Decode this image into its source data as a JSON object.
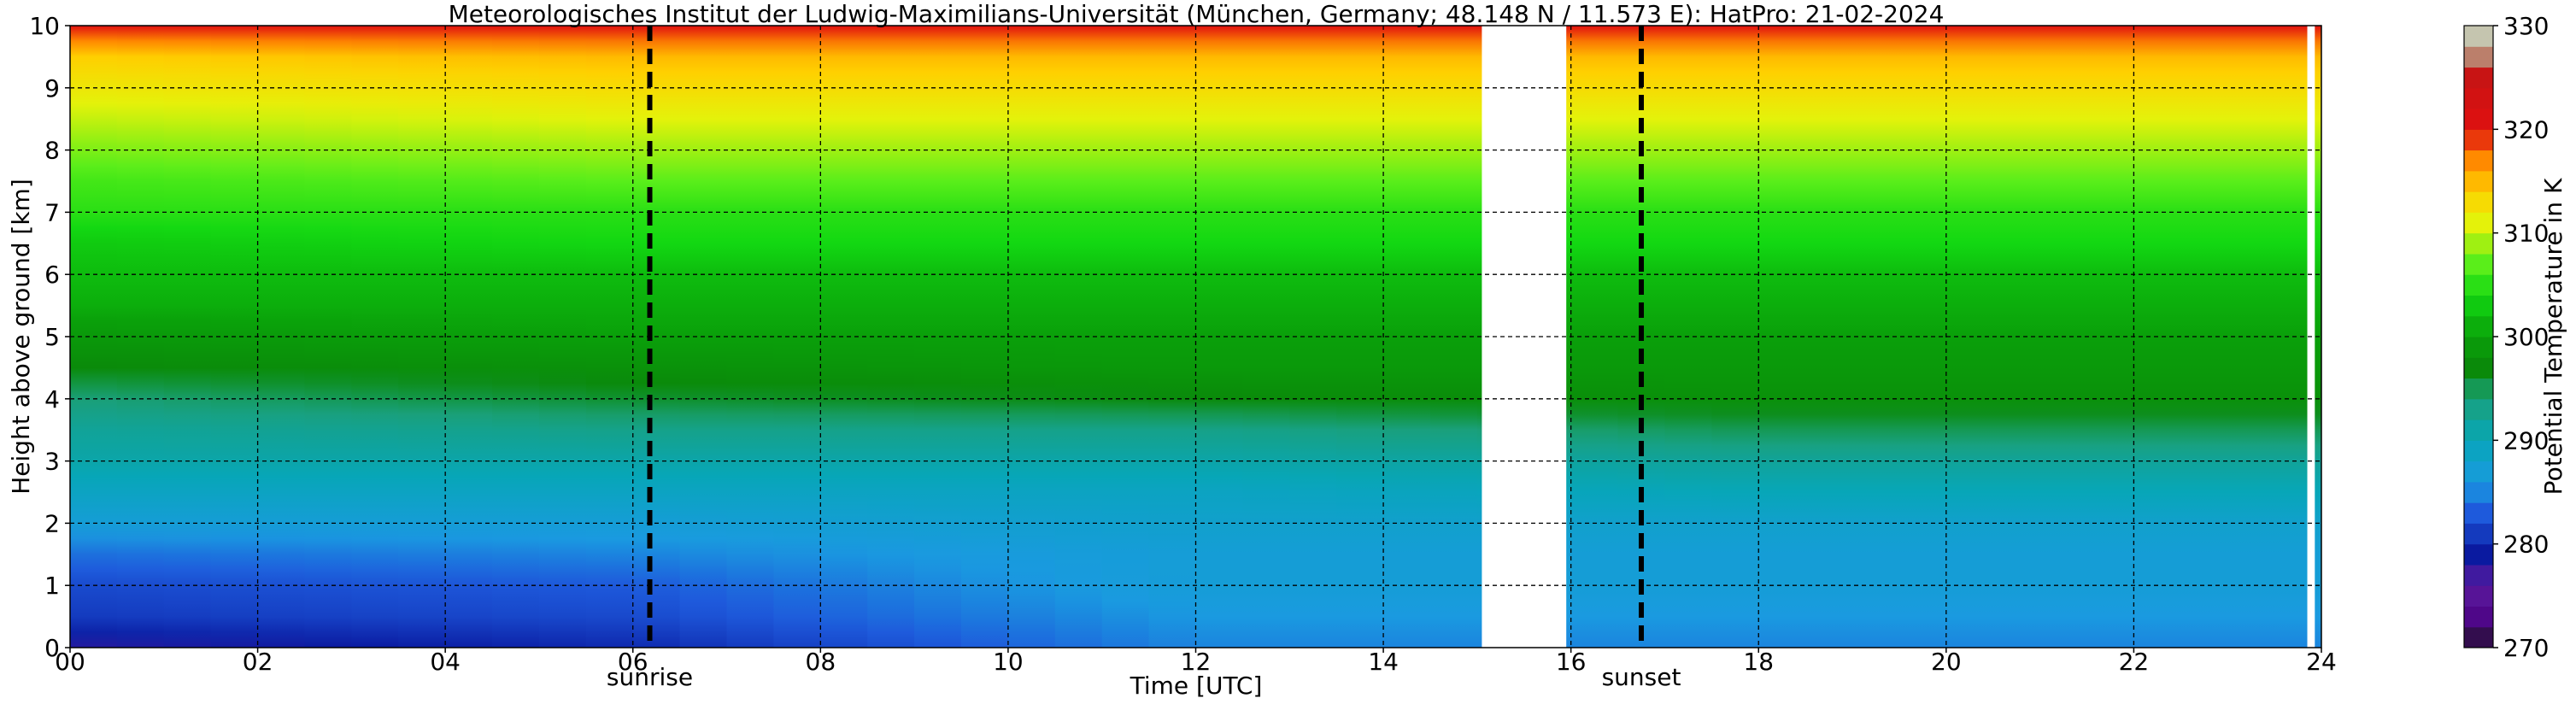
{
  "chart_data": {
    "type": "heatmap",
    "title": "Meteorologisches Institut der Ludwig-Maximilians-Universität (München, Germany; 48.148 N / 11.573 E):    HatPro: 21-02-2024",
    "xlabel": "Time [UTC]",
    "ylabel": "Height above ground [km]",
    "xlim": [
      0,
      24
    ],
    "ylim": [
      0,
      10
    ],
    "x_ticks": [
      0,
      2,
      4,
      6,
      8,
      10,
      12,
      14,
      16,
      18,
      20,
      22,
      24
    ],
    "x_tick_labels": [
      "00",
      "02",
      "04",
      "06",
      "08",
      "10",
      "12",
      "14",
      "16",
      "18",
      "20",
      "22",
      "24"
    ],
    "y_ticks": [
      0,
      1,
      2,
      3,
      4,
      5,
      6,
      7,
      8,
      9,
      10
    ],
    "y_tick_labels": [
      "0",
      "1",
      "2",
      "3",
      "4",
      "5",
      "6",
      "7",
      "8",
      "9",
      "10"
    ],
    "grid": true,
    "data_gaps": [
      [
        15.05,
        15.95
      ],
      [
        23.85,
        23.93
      ]
    ],
    "markers": [
      {
        "label": "sunrise",
        "x": 6.18
      },
      {
        "label": "sunset",
        "x": 16.75
      }
    ],
    "colorbar": {
      "label": "Potential Temperature in K",
      "min": 270,
      "max": 330,
      "ticks": [
        270,
        280,
        290,
        300,
        310,
        320,
        330
      ],
      "tick_labels": [
        "270",
        "280",
        "290",
        "300",
        "310",
        "320",
        "330"
      ]
    },
    "field_description": "Potential temperature (K) increasing with height",
    "profiles": [
      {
        "time": 0,
        "heights_km": [
          0,
          0.5,
          1.0,
          1.5,
          2.0,
          2.5,
          3.0,
          3.5,
          4.0,
          4.5,
          5.0,
          5.5,
          6.0,
          6.5,
          7.0,
          7.5,
          8.0,
          8.5,
          9.0,
          9.5,
          10.0
        ],
        "theta_K": [
          278,
          281,
          282,
          284,
          287,
          289,
          291,
          292,
          294,
          297,
          299,
          301,
          302,
          303,
          305,
          306,
          308,
          310,
          312,
          314,
          320
        ]
      },
      {
        "time": 6,
        "heights_km": [
          0,
          0.5,
          1.0,
          1.5,
          2.0,
          2.5,
          3.0,
          3.5,
          4.0,
          4.5,
          5.0,
          5.5,
          6.0,
          6.5,
          7.0,
          7.5,
          8.0,
          8.5,
          9.0,
          9.5,
          10.0
        ],
        "theta_K": [
          280,
          282,
          283,
          285,
          287,
          289,
          291,
          293,
          296,
          298,
          300,
          301,
          302,
          304,
          305,
          307,
          309,
          311,
          313,
          315,
          320
        ]
      },
      {
        "time": 12,
        "heights_km": [
          0,
          0.5,
          1.0,
          1.5,
          2.0,
          2.5,
          3.0,
          3.5,
          4.0,
          4.5,
          5.0,
          5.5,
          6.0,
          6.5,
          7.0,
          7.5,
          8.0,
          8.5,
          9.0,
          9.5,
          10.0
        ],
        "theta_K": [
          285,
          286,
          287,
          287,
          288,
          289,
          291,
          293,
          297,
          299,
          300,
          301,
          302,
          304,
          305,
          307,
          309,
          311,
          313,
          315,
          320
        ]
      },
      {
        "time": 18,
        "heights_km": [
          0,
          0.5,
          1.0,
          1.5,
          2.0,
          2.5,
          3.0,
          3.5,
          4.0,
          4.5,
          5.0,
          5.5,
          6.0,
          6.5,
          7.0,
          7.5,
          8.0,
          8.5,
          9.0,
          9.5,
          10.0
        ],
        "theta_K": [
          285,
          286,
          287,
          287,
          288,
          290,
          292,
          295,
          298,
          299,
          300,
          301,
          302,
          304,
          305,
          307,
          309,
          311,
          313,
          315,
          320
        ]
      },
      {
        "time": 24,
        "heights_km": [
          0,
          0.5,
          1.0,
          1.5,
          2.0,
          2.5,
          3.0,
          3.5,
          4.0,
          4.5,
          5.0,
          5.5,
          6.0,
          6.5,
          7.0,
          7.5,
          8.0,
          8.5,
          9.0,
          9.5,
          10.0
        ],
        "theta_K": [
          285,
          286,
          287,
          287,
          288,
          290,
          292,
          295,
          298,
          299,
          300,
          301,
          302,
          304,
          305,
          307,
          309,
          311,
          313,
          315,
          320
        ]
      }
    ]
  },
  "colors": {
    "colormap": [
      {
        "value": 270,
        "color": "#1a1a1a"
      },
      {
        "value": 272,
        "color": "#4b0082"
      },
      {
        "value": 276,
        "color": "#5b1a9e"
      },
      {
        "value": 279,
        "color": "#0a1aa0"
      },
      {
        "value": 283,
        "color": "#1e5adc"
      },
      {
        "value": 286,
        "color": "#1a9ae0"
      },
      {
        "value": 290,
        "color": "#07a6b8"
      },
      {
        "value": 294,
        "color": "#1aa07a"
      },
      {
        "value": 297,
        "color": "#0a8a0a"
      },
      {
        "value": 300,
        "color": "#0aa00a"
      },
      {
        "value": 304,
        "color": "#12d812"
      },
      {
        "value": 307,
        "color": "#5aee1a"
      },
      {
        "value": 311,
        "color": "#e4f20a"
      },
      {
        "value": 314,
        "color": "#ffd000"
      },
      {
        "value": 317,
        "color": "#ff8a00"
      },
      {
        "value": 320,
        "color": "#e01010"
      },
      {
        "value": 325,
        "color": "#c81414"
      },
      {
        "value": 328,
        "color": "#b4b496"
      },
      {
        "value": 330,
        "color": "#d6d6c8"
      }
    ],
    "grid": "#000000",
    "marker_line": "#000000"
  }
}
